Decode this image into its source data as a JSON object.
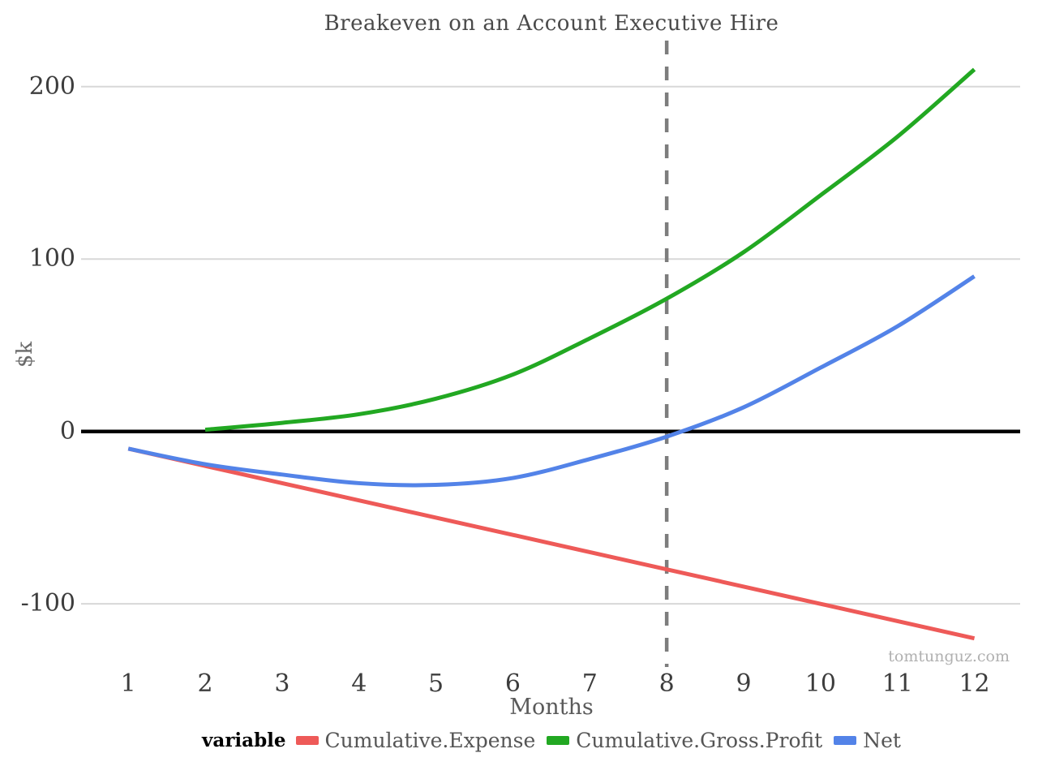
{
  "chart_data": {
    "type": "line",
    "title": "Breakeven on an Account Executive Hire",
    "xlabel": "Months",
    "ylabel": "$k",
    "watermark": "tomtunguz.com",
    "x_ticks": [
      1,
      2,
      3,
      4,
      5,
      6,
      7,
      8,
      9,
      10,
      11,
      12
    ],
    "y_ticks": [
      {
        "value": 200,
        "label": "200"
      },
      {
        "value": 100,
        "label": "100"
      },
      {
        "value": 0,
        "label": "0"
      },
      {
        "value": -100,
        "label": "-100"
      }
    ],
    "xlim": [
      0.4,
      12.6
    ],
    "ylim": [
      -135,
      227
    ],
    "grid": "horizontal-major-only",
    "grid_color": "#d8d8d8",
    "zero_line_color": "#000000",
    "breakeven_line": {
      "x": 8,
      "style": "dashed",
      "color": "#7d7d7d"
    },
    "legend": {
      "title": "variable",
      "position": "bottom"
    },
    "series": [
      {
        "name": "Cumulative.Expense",
        "color": "#ee5a58",
        "x": [
          1,
          2,
          3,
          4,
          5,
          6,
          7,
          8,
          9,
          10,
          11,
          12
        ],
        "values": [
          -10,
          -20,
          -30,
          -40,
          -50,
          -60,
          -70,
          -80,
          -90,
          -100,
          -110,
          -120
        ]
      },
      {
        "name": "Cumulative.Gross.Profit",
        "color": "#22a822",
        "x": [
          2,
          3,
          4,
          5,
          6,
          7,
          8,
          9,
          10,
          11,
          12
        ],
        "values": [
          1,
          5,
          10,
          19,
          33,
          54,
          77,
          104,
          137,
          171,
          210
        ]
      },
      {
        "name": "Net",
        "color": "#5383e8",
        "x": [
          1,
          2,
          3,
          4,
          5,
          6,
          7,
          8,
          9,
          10,
          11,
          12
        ],
        "values": [
          -10,
          -19,
          -25,
          -30,
          -31,
          -27,
          -16,
          -3,
          14,
          37,
          61,
          90
        ]
      }
    ]
  }
}
